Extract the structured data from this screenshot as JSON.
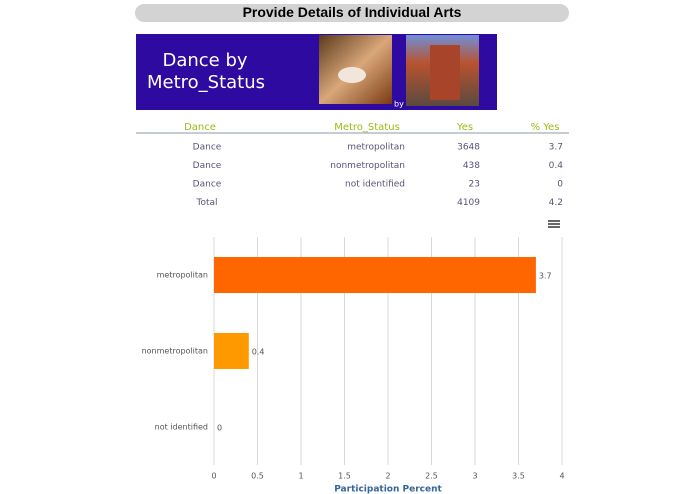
{
  "header": {
    "title": "Provide Details of Individual Arts"
  },
  "banner": {
    "title_lines": [
      "Dance by",
      "Metro_Status"
    ],
    "by": "by"
  },
  "table": {
    "columns": [
      "Dance",
      "Metro_Status",
      "Yes",
      "% Yes"
    ],
    "rows": [
      [
        "Dance",
        "metropolitan",
        3648,
        3.7
      ],
      [
        "Dance",
        "nonmetropolitan",
        438,
        0.4
      ],
      [
        "Dance",
        "not identified",
        23,
        0
      ],
      [
        "Total",
        null,
        4109,
        4.2
      ]
    ]
  },
  "chart_data": {
    "type": "hbar",
    "x_label": "Participation Percent",
    "categories": [
      "metropolitan",
      "nonmetropolitan",
      "not identified"
    ],
    "values": [
      3.7,
      0.4,
      0
    ],
    "colors": [
      "#ff6600",
      "#ff9900",
      "#ffcc00"
    ],
    "xlim": [
      0,
      4
    ],
    "xticks": [
      0,
      0.5,
      1,
      1.5,
      2,
      2.5,
      3,
      3.5,
      4
    ],
    "grid": true
  }
}
